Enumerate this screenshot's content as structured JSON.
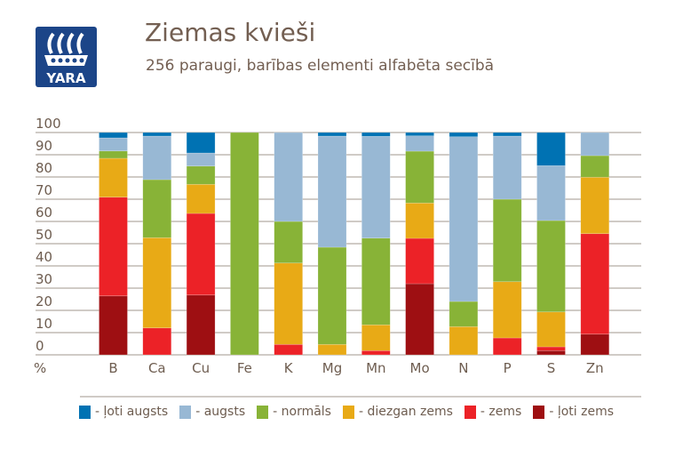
{
  "logo": {
    "text": "YARA"
  },
  "header": {
    "title": "Ziemas kvieši",
    "subtitle": "256 paraugi, barības elementi alfabēta secībā"
  },
  "chart_data": {
    "type": "bar",
    "stacked": true,
    "title": "Ziemas kvieši",
    "subtitle": "256 paraugi, barības elementi alfabēta secībā",
    "xlabel": "",
    "ylabel": "%",
    "ylim": [
      0,
      100
    ],
    "yticks": [
      "0",
      "10",
      "20",
      "30",
      "40",
      "50",
      "60",
      "70",
      "80",
      "90",
      "100"
    ],
    "grid": true,
    "legend_position": "bottom",
    "categories": [
      "B",
      "Ca",
      "Cu",
      "Fe",
      "K",
      "Mg",
      "Mn",
      "Mo",
      "N",
      "P",
      "S",
      "Zn"
    ],
    "series": [
      {
        "name": "- ļoti zems",
        "color": "#9e0f12",
        "values": [
          26.5,
          0,
          26.9,
          0,
          0,
          0,
          0,
          32.0,
          0,
          0,
          1.9,
          9.3
        ]
      },
      {
        "name": "- zems",
        "color": "#ec2227",
        "values": [
          44.4,
          12.1,
          36.7,
          0,
          4.7,
          0,
          1.9,
          20.4,
          0,
          7.6,
          1.7,
          45.2
        ]
      },
      {
        "name": "- diezgan zems",
        "color": "#e8aa16",
        "values": [
          17.5,
          40.6,
          13.1,
          0,
          36.6,
          4.7,
          11.6,
          15.9,
          12.7,
          25.3,
          15.7,
          25.4
        ]
      },
      {
        "name": "- normāls",
        "color": "#88b337",
        "values": [
          3.3,
          26.1,
          8.2,
          100,
          18.7,
          43.7,
          39.0,
          23.3,
          11.3,
          37.1,
          41.1,
          9.7
        ]
      },
      {
        "name": "- augsts",
        "color": "#98b8d4",
        "values": [
          5.9,
          19.6,
          5.9,
          0,
          40.0,
          50.0,
          45.8,
          6.9,
          74.1,
          28.4,
          24.7,
          10.4
        ]
      },
      {
        "name": "- ļoti augsts",
        "color": "#0072b3",
        "values": [
          2.4,
          1.6,
          9.2,
          0,
          0,
          1.6,
          1.7,
          1.5,
          1.9,
          1.6,
          14.9,
          0
        ]
      }
    ]
  }
}
